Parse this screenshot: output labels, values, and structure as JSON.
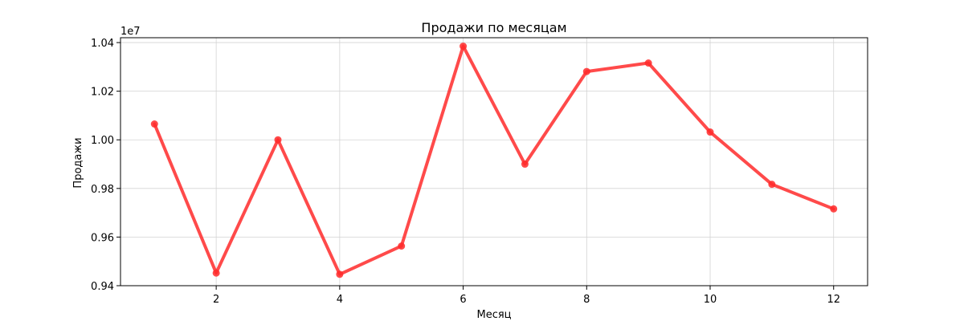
{
  "chart_data": {
    "type": "line",
    "title": "Продажи по месяцам",
    "xlabel": "Месяц",
    "ylabel": "Продажи",
    "y_scale_label": "1e7",
    "x": [
      1,
      2,
      3,
      4,
      5,
      6,
      7,
      8,
      9,
      10,
      11,
      12
    ],
    "y": [
      10065000,
      9452000,
      10000000,
      9447000,
      9563000,
      10385000,
      9900000,
      10281000,
      10316000,
      10032000,
      9817000,
      9716000
    ],
    "xlim": [
      0.45,
      12.55
    ],
    "ylim": [
      9400000.0,
      10420000.0
    ],
    "xticks": [
      2,
      4,
      6,
      8,
      10,
      12
    ],
    "xtick_labels": [
      "2",
      "4",
      "6",
      "8",
      "10",
      "12"
    ],
    "yticks": [
      9400000.0,
      9600000.0,
      9800000.0,
      10000000.0,
      10200000.0,
      10400000.0
    ],
    "ytick_labels": [
      "0.94",
      "0.96",
      "0.98",
      "1.00",
      "1.02",
      "1.04"
    ],
    "grid": true,
    "color": "#ff2a2a",
    "opacity": 0.85
  }
}
